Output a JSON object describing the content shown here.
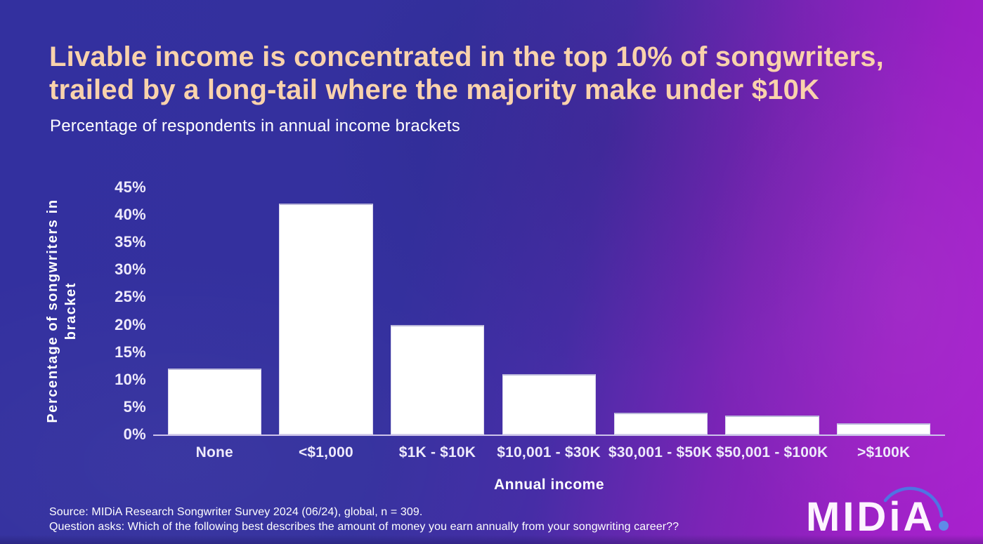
{
  "title": {
    "line1": "Livable income is concentrated in the top 10% of songwriters,",
    "line2": "trailed by a long-tail where the majority make under $10K"
  },
  "subtitle": "Percentage of respondents in annual income brackets",
  "chart_data": {
    "type": "bar",
    "categories": [
      "None",
      "<$1,000",
      "$1K - $10K",
      "$10,001 - $30K",
      "$30,001 - $50K",
      "$50,001 - $100K",
      ">$100K"
    ],
    "values": [
      12,
      42,
      20,
      11,
      4,
      3.5,
      2
    ],
    "title": "Percentage of respondents in annual income brackets",
    "xlabel": "Annual income",
    "ylabel": "Percentage of songwriters in bracket",
    "ylim": [
      0,
      45
    ],
    "ytick_labels": [
      "0%",
      "5%",
      "10%",
      "15%",
      "20%",
      "25%",
      "30%",
      "35%",
      "40%",
      "45%"
    ],
    "grid": false,
    "legend": "none",
    "bar_color": "#ffffff"
  },
  "labels": {
    "y_axis_line1": "Percentage of songwriters in",
    "y_axis_line2": "bracket"
  },
  "footer": {
    "source_line1": "Source: MIDiA Research Songwriter Survey 2024 (06/24), global, n = 309.",
    "source_line2": "Question asks: Which of the following best describes the amount of money you earn annually from your songwriting career??"
  },
  "logo": {
    "text": "MIDiA"
  },
  "colors": {
    "title-color": "#f9d2ac",
    "text-color": "#ffffff",
    "tick-color": "#eeeafb",
    "axis-color": "#cdc3ea",
    "bar-color": "#ffffff",
    "bg-left": "#33309f",
    "bg-right": "#a81fce",
    "logo-arc-color": "#4f74e3",
    "logo-dot-color": "#5f8ae8"
  }
}
